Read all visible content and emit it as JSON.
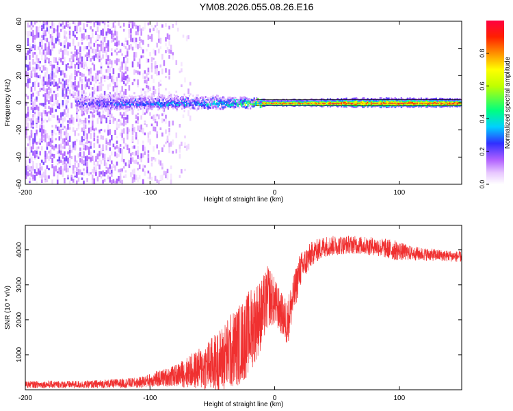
{
  "title": "YM08.2026.055.08.26.E16",
  "colors": {
    "snr_line": "#f03030",
    "ridge_line": "#000000",
    "axis": "#000000"
  },
  "chart_data": [
    {
      "type": "heatmap",
      "name": "spectrogram",
      "xlabel": "Height of straight line (km)",
      "ylabel": "Frequency (Hz)",
      "xlim": [
        -200,
        150
      ],
      "ylim": [
        -60,
        60
      ],
      "xticks": [
        -200,
        -100,
        0,
        100
      ],
      "yticks": [
        -60,
        -40,
        -20,
        0,
        20,
        40,
        60
      ],
      "colorbar": {
        "label": "Normalized spectral amplitude",
        "range": [
          0,
          1
        ],
        "ticks": [
          "0.0",
          "0.2",
          "0.4",
          "0.6",
          "0.8"
        ],
        "tick_values": [
          0,
          0.2,
          0.4,
          0.6,
          0.8
        ]
      },
      "ridge": {
        "description": "strong amplitude band near 0 Hz",
        "frequency_hz": 0,
        "x_range": [
          -160,
          150
        ],
        "half_width_hz": [
          [
            -160,
            4
          ],
          [
            -60,
            3
          ],
          [
            0,
            1.5
          ],
          [
            80,
            2.5
          ],
          [
            150,
            2
          ]
        ],
        "amplitude": [
          [
            -160,
            0.22
          ],
          [
            -100,
            0.32
          ],
          [
            -60,
            0.38
          ],
          [
            -30,
            0.45
          ],
          [
            -10,
            0.9
          ],
          [
            0,
            0.95
          ],
          [
            50,
            0.95
          ],
          [
            150,
            0.95
          ]
        ]
      },
      "noise_scatter": {
        "description": "scattered low-amplitude speckle",
        "density_profile": [
          [
            -200,
            1.0
          ],
          [
            -150,
            0.9
          ],
          [
            -110,
            0.65
          ],
          [
            -90,
            0.4
          ],
          [
            -75,
            0.15
          ],
          [
            -65,
            0.0
          ]
        ],
        "amplitude_range": [
          0.02,
          0.2
        ]
      }
    },
    {
      "type": "line",
      "name": "snr",
      "xlabel": "Height of straight line (km)",
      "ylabel": "SNR (10 * v/v)",
      "xlim": [
        -200,
        150
      ],
      "ylim": [
        0,
        4700
      ],
      "xticks": [
        -200,
        -100,
        0,
        100
      ],
      "yticks": [
        1000,
        2000,
        3000,
        4000
      ],
      "series": [
        {
          "name": "SNR",
          "envelope": {
            "x": [
              -200,
              -150,
              -110,
              -80,
              -60,
              -45,
              -35,
              -25,
              -18,
              -10,
              -5,
              0,
              5,
              10,
              20,
              30,
              40,
              60,
              80,
              95,
              110,
              130,
              150
            ],
            "base": [
              150,
              150,
              200,
              400,
              600,
              800,
              1100,
              1400,
              1800,
              2200,
              2700,
              2500,
              2200,
              1900,
              3400,
              3900,
              4100,
              4150,
              4100,
              4000,
              3900,
              3850,
              3800
            ],
            "spread": [
              100,
              110,
              150,
              300,
              600,
              900,
              1100,
              1200,
              1200,
              1000,
              900,
              700,
              600,
              700,
              500,
              350,
              300,
              260,
              260,
              300,
              200,
              170,
              150
            ]
          }
        }
      ]
    }
  ]
}
